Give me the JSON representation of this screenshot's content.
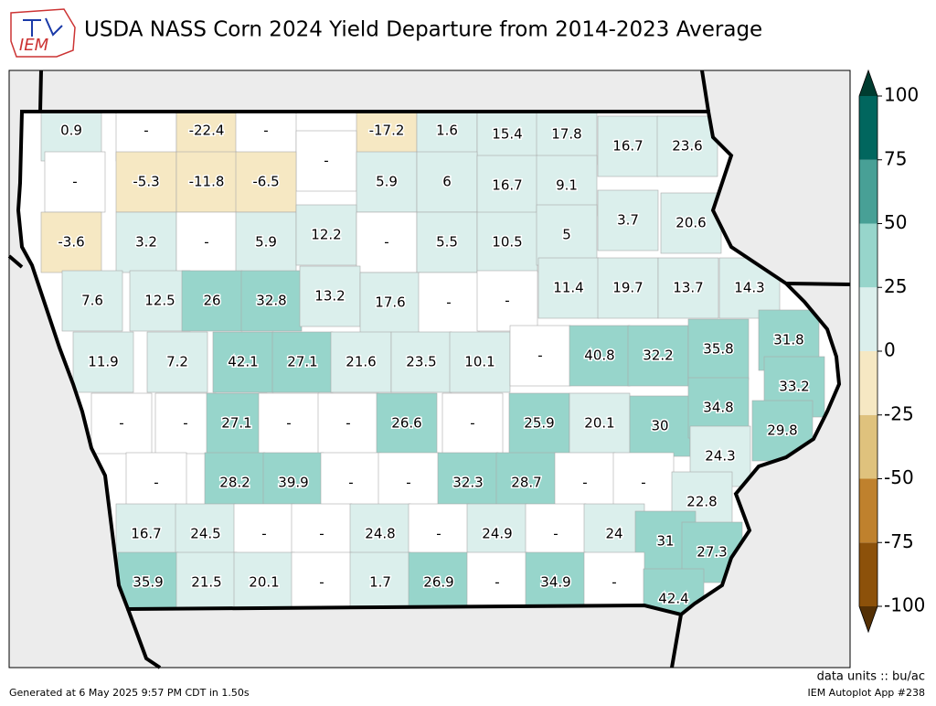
{
  "header": {
    "logo_text": "IEM",
    "title": "USDA NASS Corn 2024 Yield Departure from 2014-2023 Average"
  },
  "map": {
    "county_labels": [
      0.9,
      "-",
      -22.4,
      "-",
      -17.2,
      1.6,
      15.4,
      17.8,
      "-",
      16.7,
      23.6,
      "-",
      -5.3,
      -11.8,
      -6.5,
      5.9,
      6.0,
      16.7,
      9.1,
      -3.6,
      3.2,
      "-",
      5.9,
      12.2,
      "-",
      5.5,
      10.5,
      5.0,
      3.7,
      20.6,
      7.6,
      12.5,
      26.0,
      32.8,
      13.2,
      17.6,
      "-",
      "-",
      11.4,
      19.7,
      13.7,
      14.3,
      11.9,
      7.2,
      42.1,
      27.1,
      21.6,
      23.5,
      10.1,
      "-",
      40.8,
      32.2,
      35.8,
      31.8,
      33.2,
      "-",
      "-",
      27.1,
      "-",
      "-",
      26.6,
      "-",
      25.9,
      20.1,
      30.0,
      34.8,
      29.8,
      24.3,
      "-",
      28.2,
      39.9,
      "-",
      "-",
      32.3,
      28.7,
      "-",
      "-",
      22.8,
      16.7,
      24.5,
      "-",
      "-",
      24.8,
      "-",
      24.9,
      "-",
      24.0,
      31.0,
      27.3,
      35.9,
      21.5,
      20.1,
      "-",
      1.7,
      26.9,
      "-",
      34.9,
      "-",
      42.4
    ]
  },
  "colorbar": {
    "levels": [
      -100,
      -75,
      -50,
      -25,
      0,
      25,
      50,
      75,
      100
    ],
    "colors": [
      "#8c510a",
      "#bf812d",
      "#dfc27d",
      "#f6e8c3",
      "#dbefec",
      "#97d5cb",
      "#48a096",
      "#01665e"
    ],
    "under_color": "#543005",
    "over_color": "#003c30"
  },
  "footer": {
    "generated": "Generated at 6 May 2025 9:57 PM CDT in 1.50s",
    "units": "data units :: bu/ac",
    "app": "IEM Autoplot App #238"
  }
}
